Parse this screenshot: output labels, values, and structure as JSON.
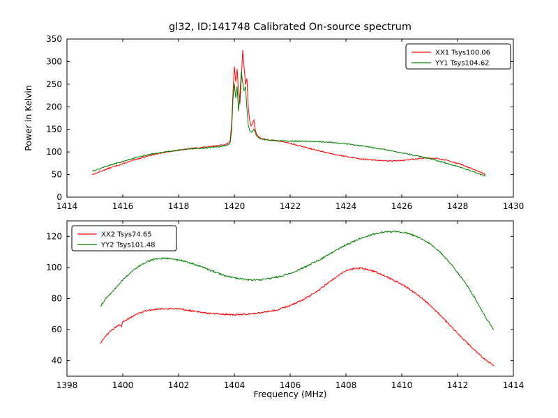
{
  "chart_data": [
    {
      "type": "line",
      "name": "top-spectrum",
      "title": "gl32, ID:141748 Calibrated On-source spectrum",
      "xlabel": "",
      "ylabel": "Power in Kelvin",
      "xlim": [
        1414,
        1430
      ],
      "ylim": [
        0,
        350
      ],
      "xticks": [
        1414,
        1416,
        1418,
        1420,
        1422,
        1424,
        1426,
        1428,
        1430
      ],
      "yticks": [
        0,
        50,
        100,
        150,
        200,
        250,
        300,
        350
      ],
      "grid": false,
      "legend_position": "top-right",
      "series": [
        {
          "name": "XX1 Tsys100.06",
          "color": "#ff0000",
          "points": [
            [
              1414.9,
              50
            ],
            [
              1415.2,
              57
            ],
            [
              1415.6,
              66
            ],
            [
              1416.0,
              74
            ],
            [
              1416.5,
              84
            ],
            [
              1417.0,
              93
            ],
            [
              1417.5,
              99
            ],
            [
              1418.0,
              104
            ],
            [
              1418.5,
              108
            ],
            [
              1419.0,
              111
            ],
            [
              1419.3,
              113
            ],
            [
              1419.6,
              116
            ],
            [
              1419.75,
              118
            ],
            [
              1419.85,
              125
            ],
            [
              1419.9,
              160
            ],
            [
              1419.95,
              230
            ],
            [
              1420.0,
              290
            ],
            [
              1420.05,
              255
            ],
            [
              1420.1,
              283
            ],
            [
              1420.15,
              235
            ],
            [
              1420.2,
              205
            ],
            [
              1420.25,
              262
            ],
            [
              1420.3,
              325
            ],
            [
              1420.35,
              288
            ],
            [
              1420.4,
              250
            ],
            [
              1420.45,
              262
            ],
            [
              1420.5,
              200
            ],
            [
              1420.55,
              168
            ],
            [
              1420.6,
              158
            ],
            [
              1420.7,
              170
            ],
            [
              1420.75,
              150
            ],
            [
              1420.8,
              138
            ],
            [
              1420.9,
              132
            ],
            [
              1421.0,
              129
            ],
            [
              1421.2,
              127
            ],
            [
              1421.5,
              125
            ],
            [
              1421.8,
              122
            ],
            [
              1422.0,
              119
            ],
            [
              1422.5,
              111
            ],
            [
              1423.0,
              103
            ],
            [
              1423.5,
              96
            ],
            [
              1424.0,
              90
            ],
            [
              1424.5,
              85
            ],
            [
              1425.0,
              82
            ],
            [
              1425.5,
              80
            ],
            [
              1426.0,
              81
            ],
            [
              1426.4,
              84
            ],
            [
              1426.8,
              87
            ],
            [
              1427.2,
              86
            ],
            [
              1427.6,
              82
            ],
            [
              1428.0,
              75
            ],
            [
              1428.4,
              66
            ],
            [
              1428.7,
              58
            ],
            [
              1429.0,
              50
            ]
          ]
        },
        {
          "name": "YY1 Tsys104.62",
          "color": "#008000",
          "points": [
            [
              1414.9,
              57
            ],
            [
              1415.2,
              64
            ],
            [
              1415.6,
              72
            ],
            [
              1416.0,
              79
            ],
            [
              1416.5,
              88
            ],
            [
              1417.0,
              95
            ],
            [
              1417.5,
              100
            ],
            [
              1418.0,
              104
            ],
            [
              1418.5,
              107
            ],
            [
              1419.0,
              109
            ],
            [
              1419.3,
              111
            ],
            [
              1419.6,
              113
            ],
            [
              1419.75,
              115
            ],
            [
              1419.85,
              120
            ],
            [
              1419.9,
              145
            ],
            [
              1419.95,
              215
            ],
            [
              1420.0,
              252
            ],
            [
              1420.05,
              218
            ],
            [
              1420.1,
              246
            ],
            [
              1420.15,
              190
            ],
            [
              1420.2,
              230
            ],
            [
              1420.25,
              278
            ],
            [
              1420.3,
              255
            ],
            [
              1420.35,
              235
            ],
            [
              1420.4,
              245
            ],
            [
              1420.45,
              195
            ],
            [
              1420.5,
              158
            ],
            [
              1420.55,
              148
            ],
            [
              1420.6,
              143
            ],
            [
              1420.7,
              150
            ],
            [
              1420.8,
              135
            ],
            [
              1420.9,
              130
            ],
            [
              1421.0,
              128
            ],
            [
              1421.3,
              126
            ],
            [
              1421.6,
              125
            ],
            [
              1422.0,
              124
            ],
            [
              1422.5,
              124
            ],
            [
              1423.0,
              123
            ],
            [
              1423.5,
              121
            ],
            [
              1424.0,
              118
            ],
            [
              1424.5,
              114
            ],
            [
              1425.0,
              109
            ],
            [
              1425.5,
              104
            ],
            [
              1426.0,
              98
            ],
            [
              1426.5,
              92
            ],
            [
              1426.8,
              88
            ],
            [
              1427.2,
              82
            ],
            [
              1427.6,
              75
            ],
            [
              1428.0,
              68
            ],
            [
              1428.4,
              60
            ],
            [
              1428.7,
              53
            ],
            [
              1429.0,
              46
            ]
          ]
        }
      ]
    },
    {
      "type": "line",
      "name": "bottom-spectrum",
      "title": "",
      "xlabel": "Frequency (MHz)",
      "ylabel": "",
      "xlim": [
        1398,
        1414
      ],
      "ylim": [
        30,
        130
      ],
      "xticks": [
        1398,
        1400,
        1402,
        1404,
        1406,
        1408,
        1410,
        1412,
        1414
      ],
      "yticks": [
        40,
        60,
        80,
        100,
        120
      ],
      "grid": false,
      "legend_position": "top-left",
      "series": [
        {
          "name": "XX2 Tsys74.65",
          "color": "#ff0000",
          "points": [
            [
              1399.2,
              51
            ],
            [
              1399.35,
              55
            ],
            [
              1399.5,
              58
            ],
            [
              1399.7,
              61
            ],
            [
              1399.85,
              63
            ],
            [
              1399.95,
              62
            ],
            [
              1400.0,
              65
            ],
            [
              1400.2,
              67
            ],
            [
              1400.5,
              70
            ],
            [
              1400.8,
              72
            ],
            [
              1401.1,
              73
            ],
            [
              1401.5,
              73.5
            ],
            [
              1401.9,
              73.5
            ],
            [
              1402.3,
              72.5
            ],
            [
              1402.7,
              71.5
            ],
            [
              1403.1,
              70.5
            ],
            [
              1403.5,
              70
            ],
            [
              1404.0,
              69.5
            ],
            [
              1404.5,
              70
            ],
            [
              1405.0,
              71
            ],
            [
              1405.5,
              72.5
            ],
            [
              1406.0,
              75.5
            ],
            [
              1406.5,
              79.5
            ],
            [
              1407.0,
              85
            ],
            [
              1407.5,
              92
            ],
            [
              1408.0,
              98
            ],
            [
              1408.3,
              99.5
            ],
            [
              1408.6,
              99.5
            ],
            [
              1409.0,
              97.5
            ],
            [
              1409.4,
              94.5
            ],
            [
              1409.8,
              91
            ],
            [
              1410.2,
              87
            ],
            [
              1410.6,
              82
            ],
            [
              1411.0,
              76
            ],
            [
              1411.4,
              69
            ],
            [
              1411.8,
              61.5
            ],
            [
              1412.2,
              54
            ],
            [
              1412.6,
              47
            ],
            [
              1413.0,
              40.5
            ],
            [
              1413.3,
              37
            ]
          ]
        },
        {
          "name": "YY2 Tsys101.48",
          "color": "#008000",
          "points": [
            [
              1399.2,
              75
            ],
            [
              1399.4,
              80
            ],
            [
              1399.6,
              84
            ],
            [
              1399.8,
              88
            ],
            [
              1400.0,
              92
            ],
            [
              1400.3,
              97
            ],
            [
              1400.6,
              101
            ],
            [
              1400.9,
              104
            ],
            [
              1401.2,
              105.5
            ],
            [
              1401.5,
              106
            ],
            [
              1401.8,
              105.5
            ],
            [
              1402.1,
              104.5
            ],
            [
              1402.5,
              102.5
            ],
            [
              1402.9,
              100
            ],
            [
              1403.3,
              97
            ],
            [
              1403.7,
              94.5
            ],
            [
              1404.1,
              93
            ],
            [
              1404.5,
              92
            ],
            [
              1404.9,
              92
            ],
            [
              1405.3,
              93
            ],
            [
              1405.7,
              94.5
            ],
            [
              1406.1,
              97
            ],
            [
              1406.5,
              100
            ],
            [
              1407.0,
              104.5
            ],
            [
              1407.5,
              109.5
            ],
            [
              1408.0,
              114.5
            ],
            [
              1408.5,
              118.5
            ],
            [
              1409.0,
              121.5
            ],
            [
              1409.4,
              123
            ],
            [
              1409.8,
              123
            ],
            [
              1410.2,
              122
            ],
            [
              1410.6,
              119.5
            ],
            [
              1411.0,
              115.5
            ],
            [
              1411.4,
              109.5
            ],
            [
              1411.8,
              101.5
            ],
            [
              1412.2,
              92
            ],
            [
              1412.6,
              81
            ],
            [
              1413.0,
              68
            ],
            [
              1413.3,
              60
            ]
          ]
        }
      ]
    }
  ]
}
